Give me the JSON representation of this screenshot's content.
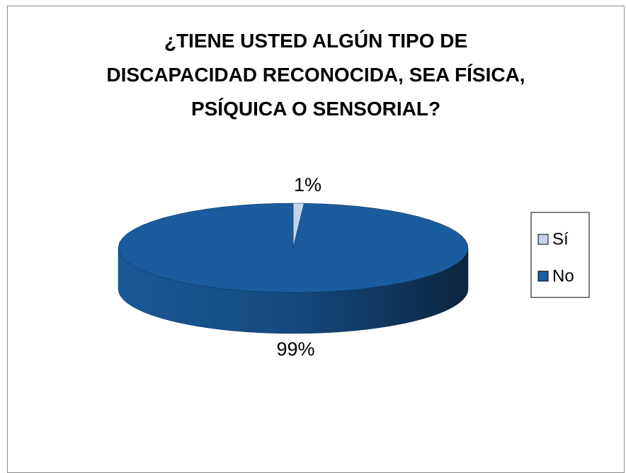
{
  "chart_data": {
    "type": "pie",
    "title": "¿TIENE USTED ALGÚN TIPO DE\nDISCAPACIDAD RECONOCIDA, SEA FÍSICA,\nPSÍQUICA O SENSORIAL?",
    "categories": [
      "Sí",
      "No"
    ],
    "values": [
      1,
      99
    ],
    "value_labels": [
      "1%",
      "99%"
    ],
    "colors": [
      "#c5d3ea",
      "#1a5c9e"
    ],
    "legend": "right"
  }
}
